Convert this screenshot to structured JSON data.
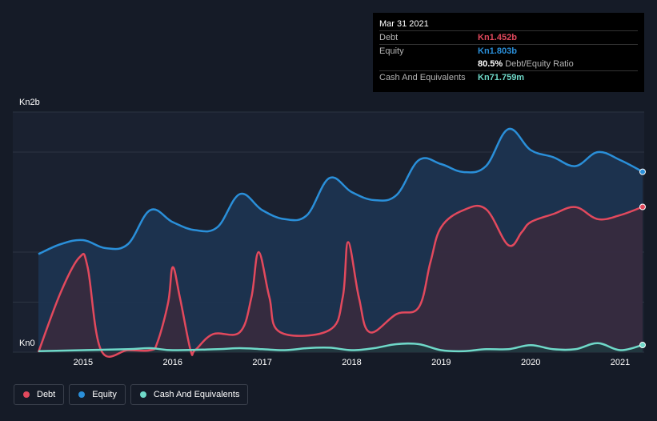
{
  "chart_data": {
    "type": "area",
    "y_axis": {
      "top_label": "Kn2b",
      "bottom_label": "Kn0",
      "ylim": [
        0,
        2.4
      ]
    },
    "x_ticks": [
      "2015",
      "2016",
      "2017",
      "2018",
      "2019",
      "2020",
      "2021"
    ],
    "xlim": [
      2014.5,
      2021.25
    ],
    "grid": true,
    "legend_placement": "bottom-left",
    "series": [
      {
        "name": "Debt",
        "color": "#e2495d",
        "points": [
          [
            2014.5,
            0.0
          ],
          [
            2014.75,
            0.6
          ],
          [
            2014.96,
            0.95
          ],
          [
            2015.05,
            0.85
          ],
          [
            2015.2,
            0.02
          ],
          [
            2015.5,
            0.02
          ],
          [
            2015.75,
            0.02
          ],
          [
            2015.83,
            0.1
          ],
          [
            2015.95,
            0.5
          ],
          [
            2016.0,
            0.85
          ],
          [
            2016.08,
            0.55
          ],
          [
            2016.2,
            0.02
          ],
          [
            2016.25,
            0.02
          ],
          [
            2016.45,
            0.18
          ],
          [
            2016.75,
            0.2
          ],
          [
            2016.88,
            0.55
          ],
          [
            2016.96,
            1.0
          ],
          [
            2017.08,
            0.55
          ],
          [
            2017.2,
            0.2
          ],
          [
            2017.75,
            0.22
          ],
          [
            2017.9,
            0.55
          ],
          [
            2017.96,
            1.1
          ],
          [
            2018.08,
            0.55
          ],
          [
            2018.2,
            0.2
          ],
          [
            2018.5,
            0.38
          ],
          [
            2018.75,
            0.45
          ],
          [
            2018.88,
            0.9
          ],
          [
            2019.0,
            1.25
          ],
          [
            2019.25,
            1.42
          ],
          [
            2019.5,
            1.43
          ],
          [
            2019.75,
            1.07
          ],
          [
            2019.9,
            1.2
          ],
          [
            2020.0,
            1.3
          ],
          [
            2020.25,
            1.38
          ],
          [
            2020.5,
            1.45
          ],
          [
            2020.75,
            1.33
          ],
          [
            2021.0,
            1.37
          ],
          [
            2021.25,
            1.452
          ]
        ]
      },
      {
        "name": "Equity",
        "color": "#2a8fd9",
        "points": [
          [
            2014.5,
            0.98
          ],
          [
            2014.75,
            1.08
          ],
          [
            2015.0,
            1.12
          ],
          [
            2015.25,
            1.04
          ],
          [
            2015.5,
            1.08
          ],
          [
            2015.75,
            1.42
          ],
          [
            2016.0,
            1.3
          ],
          [
            2016.25,
            1.22
          ],
          [
            2016.5,
            1.25
          ],
          [
            2016.75,
            1.58
          ],
          [
            2017.0,
            1.42
          ],
          [
            2017.25,
            1.33
          ],
          [
            2017.5,
            1.37
          ],
          [
            2017.75,
            1.74
          ],
          [
            2018.0,
            1.6
          ],
          [
            2018.25,
            1.52
          ],
          [
            2018.5,
            1.57
          ],
          [
            2018.75,
            1.92
          ],
          [
            2019.0,
            1.88
          ],
          [
            2019.25,
            1.8
          ],
          [
            2019.5,
            1.86
          ],
          [
            2019.75,
            2.23
          ],
          [
            2020.0,
            2.02
          ],
          [
            2020.25,
            1.95
          ],
          [
            2020.5,
            1.86
          ],
          [
            2020.75,
            2.0
          ],
          [
            2021.0,
            1.92
          ],
          [
            2021.25,
            1.803
          ]
        ]
      },
      {
        "name": "Cash And Equivalents",
        "color": "#6fd9c9",
        "points": [
          [
            2014.5,
            0.01
          ],
          [
            2015.0,
            0.02
          ],
          [
            2015.5,
            0.03
          ],
          [
            2015.75,
            0.04
          ],
          [
            2016.0,
            0.02
          ],
          [
            2016.5,
            0.03
          ],
          [
            2016.75,
            0.04
          ],
          [
            2017.0,
            0.03
          ],
          [
            2017.25,
            0.02
          ],
          [
            2017.5,
            0.04
          ],
          [
            2017.75,
            0.045
          ],
          [
            2018.0,
            0.02
          ],
          [
            2018.25,
            0.04
          ],
          [
            2018.5,
            0.08
          ],
          [
            2018.75,
            0.08
          ],
          [
            2019.0,
            0.02
          ],
          [
            2019.25,
            0.01
          ],
          [
            2019.5,
            0.03
          ],
          [
            2019.75,
            0.03
          ],
          [
            2020.0,
            0.07
          ],
          [
            2020.25,
            0.03
          ],
          [
            2020.5,
            0.03
          ],
          [
            2020.75,
            0.09
          ],
          [
            2021.0,
            0.02
          ],
          [
            2021.25,
            0.07176
          ]
        ]
      }
    ]
  },
  "tooltip": {
    "date": "Mar 31 2021",
    "debt_label": "Debt",
    "debt_value": "Kn1.452b",
    "equity_label": "Equity",
    "equity_value": "Kn1.803b",
    "ratio_value": "80.5%",
    "ratio_text": "Debt/Equity Ratio",
    "cash_label": "Cash And Equivalents",
    "cash_value": "Kn71.759m"
  },
  "legend": {
    "debt": "Debt",
    "equity": "Equity",
    "cash": "Cash And Equivalents"
  }
}
